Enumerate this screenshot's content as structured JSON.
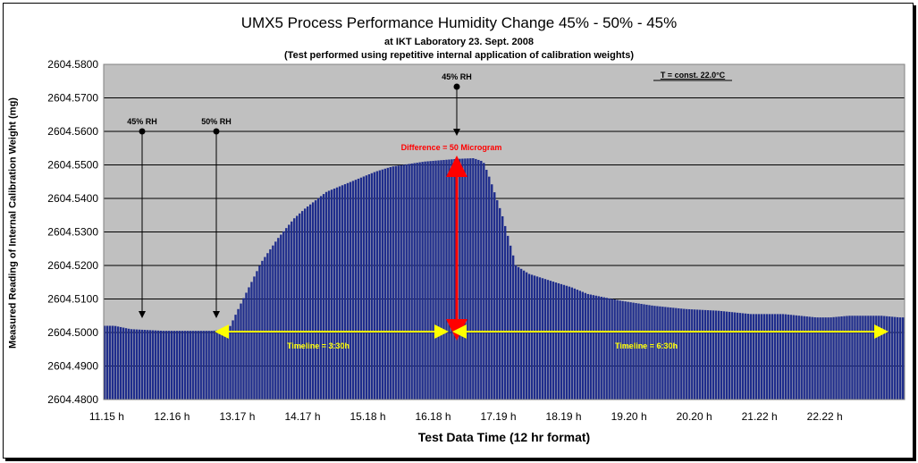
{
  "chart_data": {
    "type": "bar",
    "title": "UMX5 Process Performance Humidity Change 45% - 50% - 45%",
    "subtitle": "at IKT Laboratory 23. Sept. 2008",
    "subtitle2": "(Test performed using repetitive internal application of calibration weights)",
    "xlabel": "Test Data Time (12 hr format)",
    "ylabel": "Measured Reading of Internal Calibration Weight (mg)",
    "ylim": [
      2604.48,
      2604.58
    ],
    "ytick_values": [
      2604.48,
      2604.49,
      2604.5,
      2604.51,
      2604.52,
      2604.53,
      2604.54,
      2604.55,
      2604.56,
      2604.57,
      2604.58
    ],
    "ytick_labels": [
      "2604.4800",
      "2604.4900",
      "2604.5000",
      "2604.5100",
      "2604.5200",
      "2604.5300",
      "2604.5400",
      "2604.5500",
      "2604.5600",
      "2604.5700",
      "2604.5800"
    ],
    "xtick_labels": [
      "11.15 h",
      "12.16 h",
      "13.17 h",
      "14.17 h",
      "15.18 h",
      "16.18 h",
      "17.19 h",
      "18.19 h",
      "19.20 h",
      "20.20 h",
      "21.22 h",
      "22.22 h"
    ],
    "series": [
      {
        "x_hours": [
          11.25,
          11.5,
          12.0,
          12.5,
          12.75,
          13.0,
          13.17,
          13.5,
          13.75,
          14.0,
          14.17,
          14.5,
          15.0,
          15.25,
          15.5,
          16.0,
          16.5,
          16.75,
          16.9,
          17.0,
          17.19,
          17.4,
          17.6,
          18.0,
          18.25,
          18.5,
          19.0,
          19.5,
          20.0,
          20.5,
          21.0,
          21.5,
          22.0,
          22.22,
          22.5,
          23.0,
          23.28
        ],
        "values": [
          2604.502,
          2604.501,
          2604.5005,
          2604.5005,
          2604.5005,
          2604.501,
          2604.508,
          2604.521,
          2604.528,
          2604.534,
          2604.537,
          2604.542,
          2604.546,
          2604.548,
          2604.5495,
          2604.551,
          2604.5518,
          2604.552,
          2604.551,
          2604.546,
          2604.535,
          2604.52,
          2604.5175,
          2604.515,
          2604.5135,
          2604.5115,
          2604.5095,
          2604.508,
          2604.507,
          2604.5065,
          2604.5055,
          2604.5055,
          2604.5045,
          2604.5045,
          2604.505,
          2604.505,
          2604.5045
        ]
      }
    ],
    "grid": true,
    "colors": {
      "bars": "#1f2d8c",
      "plot_bg": "#c0c0c0",
      "timeline": "#ffff00",
      "difference": "#ff0000"
    },
    "annotations": {
      "rh1": "45% RH",
      "rh2": "50% RH",
      "rh3": "45% RH",
      "difference": "Difference = 50 Microgram",
      "timeline1": "Timeline = 3:30h",
      "timeline2": "Timeline = 6:30h",
      "temp": "T = const. 22.0°C"
    }
  }
}
